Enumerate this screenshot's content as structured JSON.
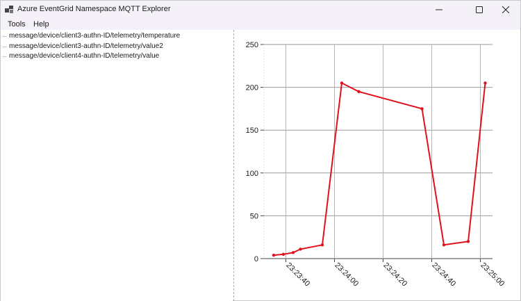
{
  "window": {
    "title": "Azure EventGrid Namespace MQTT Explorer",
    "icon": "app-window-icon",
    "controls": [
      "minimize-icon",
      "maximize-icon",
      "close-icon"
    ]
  },
  "menu": {
    "items": [
      "Tools",
      "Help"
    ]
  },
  "topics": [
    "message/device/client3-authn-ID/telemetry/temperature",
    "message/device/client3-authn-ID/telemetry/value2",
    "message/device/client4-authn-ID/telemetry/value"
  ],
  "chart_data": {
    "type": "line",
    "title": "",
    "xlabel": "",
    "ylabel": "",
    "ylim": [
      0,
      250
    ],
    "yticks": [
      0,
      50,
      100,
      150,
      200,
      250
    ],
    "xlim": [
      "23:23:31",
      "23:25:05"
    ],
    "xticks": [
      "23:23:40",
      "23:24:00",
      "23:24:20",
      "23:24:40",
      "23:25:00"
    ],
    "grid": true,
    "series": [
      {
        "color": "#e0101c",
        "x": [
          "23:23:35",
          "23:23:39",
          "23:23:43",
          "23:23:46",
          "23:23:55",
          "23:23:63",
          "23:24:10",
          "23:24:36",
          "23:24:45",
          "23:24:55",
          "23:25:02"
        ],
        "values": [
          4,
          5,
          7,
          11,
          16,
          205,
          195,
          175,
          16,
          20,
          205
        ]
      }
    ]
  }
}
